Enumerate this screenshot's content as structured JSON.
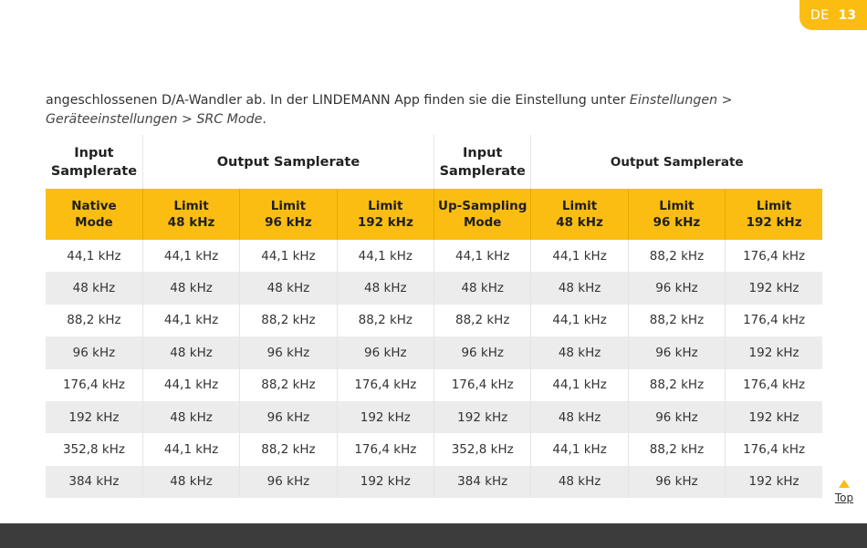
{
  "page": {
    "lang": "DE",
    "number": "13"
  },
  "intro": {
    "plain": "angeschlossenen D/A-Wandler ab. In der LINDEMANN App finden sie die Einstellung unter ",
    "path": "Einstellungen > Geräteeinstellungen > SRC Mode",
    "end": "."
  },
  "table": {
    "header1": {
      "input_a": [
        "Input",
        "Samplerate"
      ],
      "output_a": "Output Samplerate",
      "input_b": [
        "Input",
        "Samplerate"
      ],
      "output_b": "Output Samplerate"
    },
    "header2": [
      [
        "Native",
        "Mode"
      ],
      [
        "Limit",
        "48 kHz"
      ],
      [
        "Limit",
        "96 kHz"
      ],
      [
        "Limit",
        "192 kHz"
      ],
      [
        "Up-Sampling",
        "Mode"
      ],
      [
        "Limit",
        "48 kHz"
      ],
      [
        "Limit",
        "96 kHz"
      ],
      [
        "Limit",
        "192 kHz"
      ]
    ],
    "rows": [
      [
        "44,1 kHz",
        "44,1 kHz",
        "44,1 kHz",
        "44,1 kHz",
        "44,1 kHz",
        "44,1 kHz",
        "88,2 kHz",
        "176,4 kHz"
      ],
      [
        "48 kHz",
        "48 kHz",
        "48 kHz",
        "48 kHz",
        "48 kHz",
        "48 kHz",
        "96 kHz",
        "192 kHz"
      ],
      [
        "88,2 kHz",
        "44,1 kHz",
        "88,2 kHz",
        "88,2 kHz",
        "88,2 kHz",
        "44,1 kHz",
        "88,2 kHz",
        "176,4 kHz"
      ],
      [
        "96 kHz",
        "48 kHz",
        "96 kHz",
        "96 kHz",
        "96 kHz",
        "48 kHz",
        "96 kHz",
        "192 kHz"
      ],
      [
        "176,4 kHz",
        "44,1 kHz",
        "88,2 kHz",
        "176,4 kHz",
        "176,4 kHz",
        "44,1 kHz",
        "88,2 kHz",
        "176,4 kHz"
      ],
      [
        "192 kHz",
        "48 kHz",
        "96 kHz",
        "192 kHz",
        "192 kHz",
        "48 kHz",
        "96 kHz",
        "192 kHz"
      ],
      [
        "352,8 kHz",
        "44,1 kHz",
        "88,2 kHz",
        "176,4 kHz",
        "352,8 kHz",
        "44,1 kHz",
        "88,2 kHz",
        "176,4 kHz"
      ],
      [
        "384 kHz",
        "48 kHz",
        "96 kHz",
        "192 kHz",
        "384 kHz",
        "48 kHz",
        "96 kHz",
        "192 kHz"
      ]
    ]
  },
  "nav": {
    "top_label": "Top",
    "top_icon": "triangle-up-icon"
  },
  "colors": {
    "accent": "#fbbd12",
    "footer": "#3c3c3c",
    "row_alt": "#ececec"
  }
}
